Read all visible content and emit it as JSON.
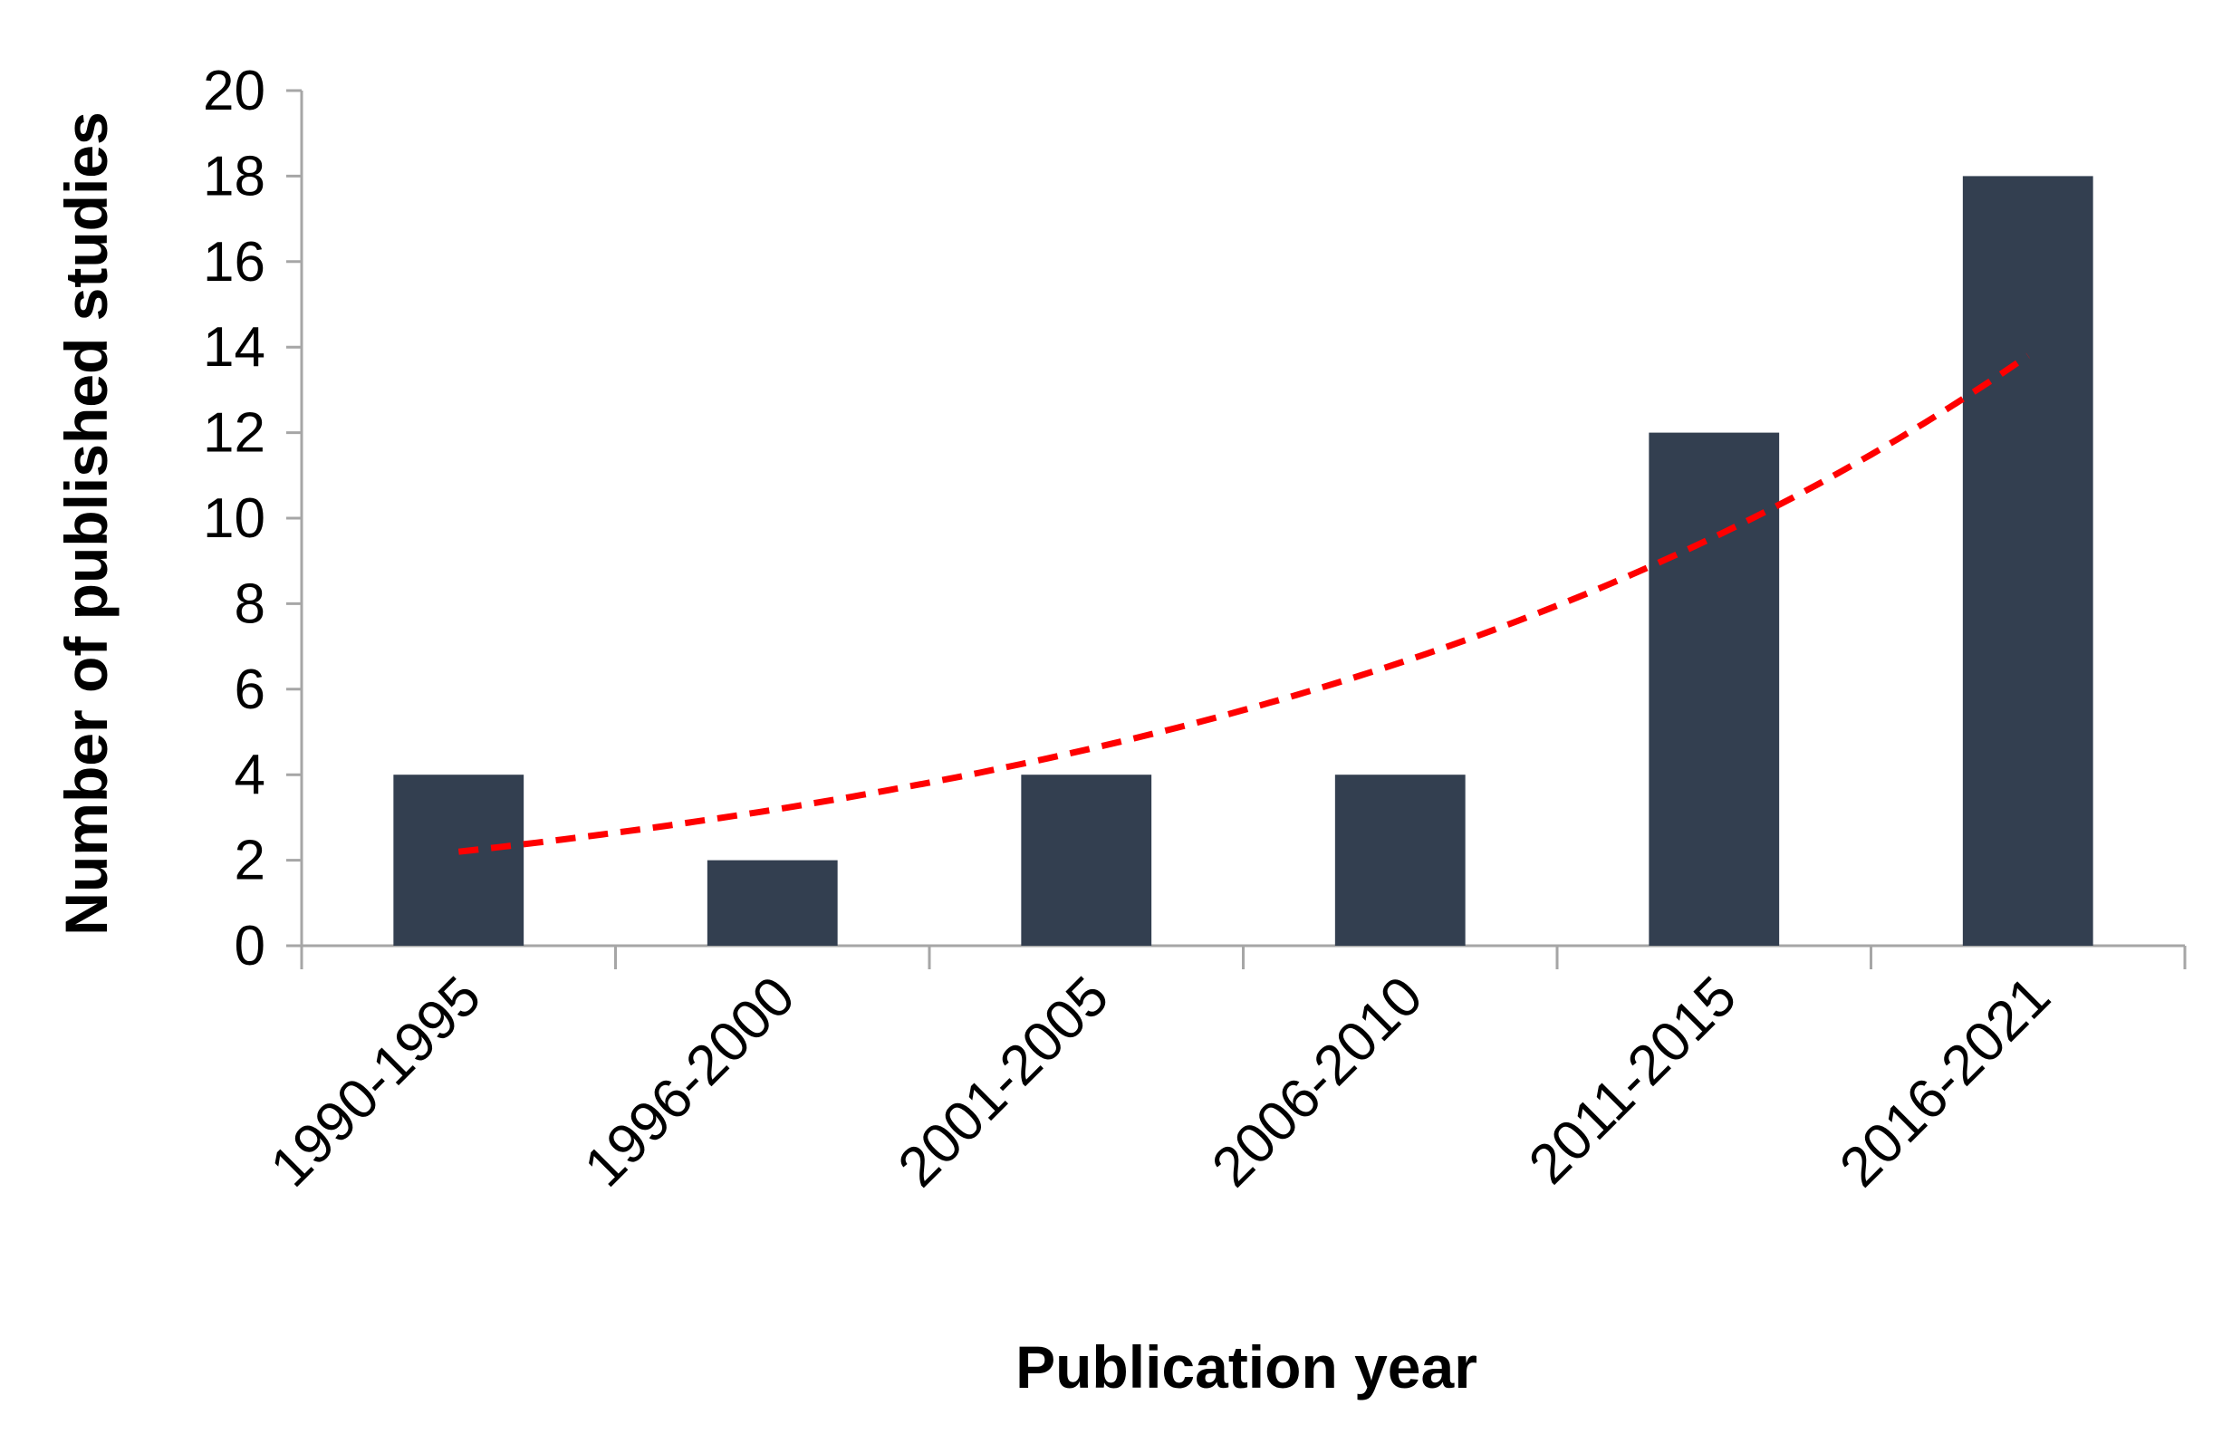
{
  "chart_data": {
    "type": "bar",
    "title": "",
    "xlabel": "Publication year",
    "ylabel": "Number of published studies",
    "categories": [
      "1990-1995",
      "1996-2000",
      "2001-2005",
      "2006-2010",
      "2011-2015",
      "2016-2021"
    ],
    "series": [
      {
        "values": [
          4,
          2,
          4,
          4,
          12,
          18
        ]
      }
    ],
    "trendline": {
      "type": "exponential",
      "style": "dashed",
      "values": [
        2.2,
        3.1,
        4.5,
        6.4,
        9.4,
        13.8
      ]
    },
    "ylim": [
      0,
      20
    ],
    "yticks": [
      0,
      2,
      4,
      6,
      8,
      10,
      12,
      14,
      16,
      18,
      20
    ],
    "grid": false,
    "legend": "none",
    "colors": {
      "bar": "#333f50",
      "trendline": "#ff0000",
      "axis": "#a6a6a6"
    }
  }
}
